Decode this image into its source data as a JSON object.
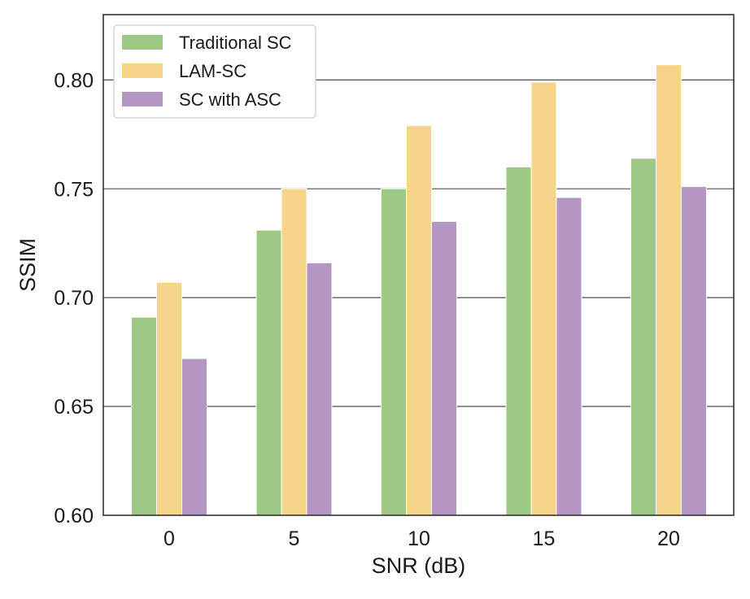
{
  "chart_data": {
    "type": "bar",
    "title": "",
    "xlabel": "SNR (dB)",
    "ylabel": "SSIM",
    "categories": [
      "0",
      "5",
      "10",
      "15",
      "20"
    ],
    "ylim": [
      0.6,
      0.83
    ],
    "yticks": [
      0.6,
      0.65,
      0.7,
      0.75,
      0.8
    ],
    "ytick_labels": [
      "0.60",
      "0.65",
      "0.70",
      "0.75",
      "0.80"
    ],
    "grid": "horizontal",
    "legend_position": "top-left",
    "series": [
      {
        "name": "Traditional SC",
        "color": "#9dc886",
        "values": [
          0.691,
          0.731,
          0.75,
          0.76,
          0.764
        ]
      },
      {
        "name": "LAM-SC",
        "color": "#f6d48a",
        "values": [
          0.707,
          0.75,
          0.779,
          0.799,
          0.807
        ]
      },
      {
        "name": "SC with ASC",
        "color": "#b596c3",
        "values": [
          0.672,
          0.716,
          0.735,
          0.746,
          0.751
        ]
      }
    ]
  }
}
